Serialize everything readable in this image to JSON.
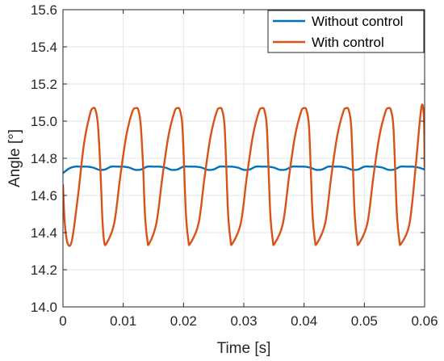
{
  "chart_data": {
    "type": "line",
    "title": "",
    "xlabel": "Time [s]",
    "ylabel": "Angle [°]",
    "xlim": [
      0,
      0.06
    ],
    "ylim": [
      14.0,
      15.6
    ],
    "xticks": [
      0,
      0.01,
      0.02,
      0.03,
      0.04,
      0.05,
      0.06
    ],
    "xtick_labels": [
      "0",
      "0.01",
      "0.02",
      "0.03",
      "0.04",
      "0.05",
      "0.06"
    ],
    "yticks": [
      14.0,
      14.2,
      14.4,
      14.6,
      14.8,
      15.0,
      15.2,
      15.4,
      15.6
    ],
    "ytick_labels": [
      "14.0",
      "14.2",
      "14.4",
      "14.6",
      "14.8",
      "15.0",
      "15.2",
      "15.4",
      "15.6"
    ],
    "grid": true,
    "legend_position": "top-right",
    "series": [
      {
        "name": "Without control",
        "color": "#0072BD",
        "x": [
          0,
          0.001,
          0.002,
          0.003,
          0.004,
          0.005,
          0.006,
          0.007,
          0.008,
          0.009,
          0.01,
          0.011,
          0.012,
          0.013,
          0.014,
          0.015,
          0.016,
          0.017,
          0.018,
          0.019,
          0.02,
          0.021,
          0.022,
          0.023,
          0.024,
          0.025,
          0.026,
          0.027,
          0.028,
          0.029,
          0.03,
          0.031,
          0.032,
          0.033,
          0.034,
          0.035,
          0.036,
          0.037,
          0.038,
          0.039,
          0.04,
          0.041,
          0.042,
          0.043,
          0.044,
          0.045,
          0.046,
          0.047,
          0.048,
          0.049,
          0.05,
          0.051,
          0.052,
          0.053,
          0.054,
          0.055,
          0.056,
          0.057,
          0.058,
          0.059,
          0.06
        ],
        "y": [
          14.72,
          14.745,
          14.755,
          14.755,
          14.755,
          14.75,
          14.738,
          14.74,
          14.755,
          14.755,
          14.755,
          14.75,
          14.738,
          14.74,
          14.755,
          14.755,
          14.755,
          14.75,
          14.738,
          14.74,
          14.755,
          14.755,
          14.755,
          14.75,
          14.738,
          14.74,
          14.755,
          14.755,
          14.755,
          14.75,
          14.738,
          14.74,
          14.755,
          14.755,
          14.755,
          14.75,
          14.738,
          14.74,
          14.755,
          14.755,
          14.755,
          14.75,
          14.738,
          14.74,
          14.755,
          14.755,
          14.755,
          14.75,
          14.738,
          14.74,
          14.755,
          14.755,
          14.755,
          14.75,
          14.738,
          14.74,
          14.755,
          14.755,
          14.755,
          14.75,
          14.74
        ]
      },
      {
        "name": "With control",
        "color": "#D95319",
        "x": [
          0,
          0.0003,
          0.0008,
          0.0015,
          0.0025,
          0.0035,
          0.0045,
          0.005,
          0.0054,
          0.0058,
          0.0062,
          0.0065,
          0.0068,
          0.0072,
          0.0085,
          0.0095,
          0.0105,
          0.0115,
          0.0121,
          0.0125,
          0.0129,
          0.0133,
          0.0136,
          0.014,
          0.0143,
          0.0155,
          0.0165,
          0.0175,
          0.0185,
          0.019,
          0.0194,
          0.0198,
          0.0201,
          0.0204,
          0.0208,
          0.0211,
          0.0225,
          0.0235,
          0.0245,
          0.0255,
          0.026,
          0.0264,
          0.0268,
          0.0271,
          0.0274,
          0.0278,
          0.0281,
          0.0295,
          0.0305,
          0.0315,
          0.0325,
          0.033,
          0.0334,
          0.0338,
          0.0341,
          0.0344,
          0.0348,
          0.0351,
          0.0365,
          0.0375,
          0.0385,
          0.0395,
          0.04,
          0.0404,
          0.0408,
          0.0411,
          0.0414,
          0.0418,
          0.0421,
          0.0435,
          0.0445,
          0.0455,
          0.0465,
          0.047,
          0.0474,
          0.0478,
          0.0481,
          0.0484,
          0.0488,
          0.0491,
          0.0505,
          0.0515,
          0.0525,
          0.0535,
          0.054,
          0.0544,
          0.0548,
          0.0551,
          0.0554,
          0.0558,
          0.0561,
          0.0575,
          0.0585,
          0.0592,
          0.0596,
          0.0599,
          0.06
        ],
        "y": [
          14.66,
          14.45,
          14.34,
          14.36,
          14.6,
          14.88,
          15.04,
          15.07,
          15.06,
          14.98,
          14.75,
          14.5,
          14.36,
          14.34,
          14.45,
          14.7,
          14.92,
          15.05,
          15.07,
          15.06,
          14.98,
          14.75,
          14.5,
          14.36,
          14.34,
          14.45,
          14.7,
          14.92,
          15.05,
          15.07,
          15.06,
          14.98,
          14.75,
          14.5,
          14.36,
          14.34,
          14.45,
          14.7,
          14.92,
          15.05,
          15.07,
          15.06,
          14.98,
          14.75,
          14.5,
          14.36,
          14.34,
          14.45,
          14.7,
          14.92,
          15.05,
          15.07,
          15.06,
          14.98,
          14.75,
          14.5,
          14.36,
          14.34,
          14.45,
          14.7,
          14.92,
          15.05,
          15.07,
          15.06,
          14.98,
          14.75,
          14.5,
          14.36,
          14.34,
          14.45,
          14.7,
          14.92,
          15.05,
          15.07,
          15.06,
          14.98,
          14.75,
          14.5,
          14.36,
          14.34,
          14.45,
          14.7,
          14.92,
          15.05,
          15.07,
          15.06,
          14.98,
          14.75,
          14.5,
          14.36,
          14.34,
          14.45,
          14.75,
          15.0,
          15.09,
          15.0,
          14.75
        ]
      }
    ]
  }
}
